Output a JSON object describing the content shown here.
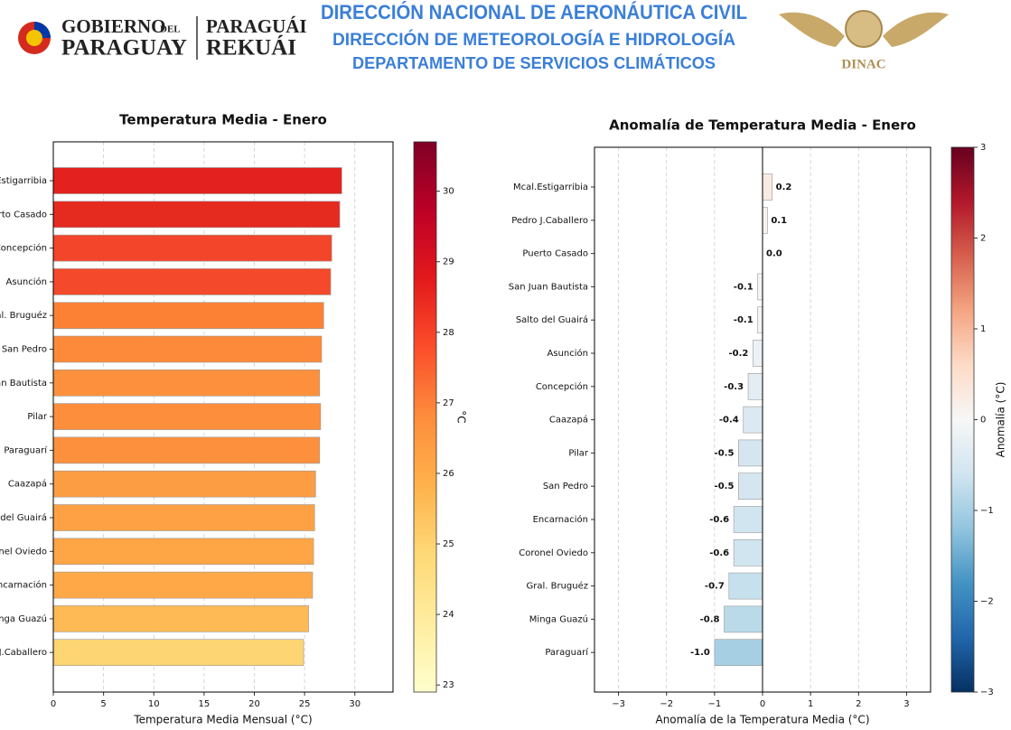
{
  "header": {
    "gov_line1": "GOBIERNO",
    "gov_del": "DEL",
    "gov_line2": "PARAGUAY",
    "gua_line1": "PARAGUÁI",
    "gua_line2": "REKUÁI",
    "title1": "DIRECCIÓN NACIONAL DE AERONÁUTICA CIVIL",
    "title2": "DIRECCIÓN DE METEOROLOGÍA  E HIDROLOGÍA",
    "title3": "DEPARTAMENTO DE SERVICIOS CLIMÁTICOS",
    "dinac": "DINAC"
  },
  "chart_data": [
    {
      "type": "bar",
      "orientation": "horizontal",
      "title": "Temperatura Media - Enero",
      "x_label": "Temperatura Media Mensual (°C)",
      "categories": [
        "Mcal.Estigarribia",
        "Puerto Casado",
        "Concepción",
        "Asunción",
        "Gral. Bruguéz",
        "San Pedro",
        "San Juan Bautista",
        "Pilar",
        "Paraguarí",
        "Caazapá",
        "Salto del Guairá",
        "Coronel Oviedo",
        "Encarnación",
        "Minga Guazú",
        "Pedro J.Caballero"
      ],
      "values": [
        28.7,
        28.5,
        27.7,
        27.6,
        26.9,
        26.7,
        26.5,
        26.6,
        26.5,
        26.1,
        26.0,
        25.9,
        25.8,
        25.4,
        24.9
      ],
      "colors": [
        "#e3211e",
        "#e52a20",
        "#f3452a",
        "#f44a2b",
        "#fc8135",
        "#fd8a3a",
        "#fd903d",
        "#fd8e3c",
        "#fd903d",
        "#fd9d43",
        "#fea144",
        "#fea546",
        "#fea848",
        "#feba55",
        "#fed573"
      ],
      "xlim": [
        0,
        33.8
      ],
      "xticks": [
        0,
        5,
        10,
        15,
        20,
        25,
        30
      ],
      "grid": true,
      "colorbar": {
        "label": "°C",
        "lim": [
          22.9,
          30.7
        ],
        "ticks": [
          23,
          24,
          25,
          26,
          27,
          28,
          29,
          30
        ],
        "colors": [
          "#ffffcc",
          "#ffeda0",
          "#fed976",
          "#feb24c",
          "#fd8d3c",
          "#fc4e2a",
          "#e31a1c",
          "#bd0026",
          "#800026"
        ]
      }
    },
    {
      "type": "bar",
      "orientation": "horizontal",
      "title": "Anomalía de Temperatura Media - Enero",
      "x_label": "Anomalía de la Temperatura Media (°C)",
      "categories": [
        "Mcal.Estigarribia",
        "Pedro J.Caballero",
        "Puerto Casado",
        "San Juan Bautista",
        "Salto del Guairá",
        "Asunción",
        "Concepción",
        "Caazapá",
        "Pilar",
        "San Pedro",
        "Encarnación",
        "Coronel Oviedo",
        "Gral. Bruguéz",
        "Minga Guazú",
        "Paraguarí"
      ],
      "values": [
        0.2,
        0.1,
        0.0,
        -0.1,
        -0.1,
        -0.2,
        -0.3,
        -0.4,
        -0.5,
        -0.5,
        -0.6,
        -0.6,
        -0.7,
        -0.8,
        -1.0
      ],
      "value_labels": [
        "0.2",
        "0.1",
        "0.0",
        "-0.1",
        "-0.1",
        "-0.2",
        "-0.3",
        "-0.4",
        "-0.5",
        "-0.5",
        "-0.6",
        "-0.6",
        "-0.7",
        "-0.8",
        "-1.0"
      ],
      "colors": [
        "#f8ebe4",
        "#f8f2ef",
        "#f7f7f7",
        "#f2f4f6",
        "#f2f4f6",
        "#ebf1f5",
        "#e3edf3",
        "#dde9f2",
        "#d6e6f1",
        "#d6e6f1",
        "#d1e5f0",
        "#d1e5f0",
        "#c7e0ed",
        "#badae9",
        "#a7cfe4"
      ],
      "xlim": [
        -3.5,
        3.5
      ],
      "xticks": [
        {
          "value": -3,
          "label": "−3"
        },
        {
          "value": -2,
          "label": "−2"
        },
        {
          "value": -1,
          "label": "−1"
        },
        0,
        1,
        2,
        3
      ],
      "grid": true,
      "zero_line": true,
      "colorbar": {
        "label": "Anomalía (°C)",
        "lim": [
          -3,
          3
        ],
        "ticks": [
          {
            "value": -3,
            "label": "−3"
          },
          {
            "value": -2,
            "label": "−2"
          },
          {
            "value": -1,
            "label": "−1"
          },
          0,
          1,
          2,
          3
        ],
        "colors": [
          "#053061",
          "#2166ac",
          "#4393c3",
          "#92c5de",
          "#d1e5f0",
          "#f7f7f7",
          "#fddbc7",
          "#f4a582",
          "#d6604d",
          "#b2182b",
          "#67001f"
        ]
      }
    }
  ]
}
